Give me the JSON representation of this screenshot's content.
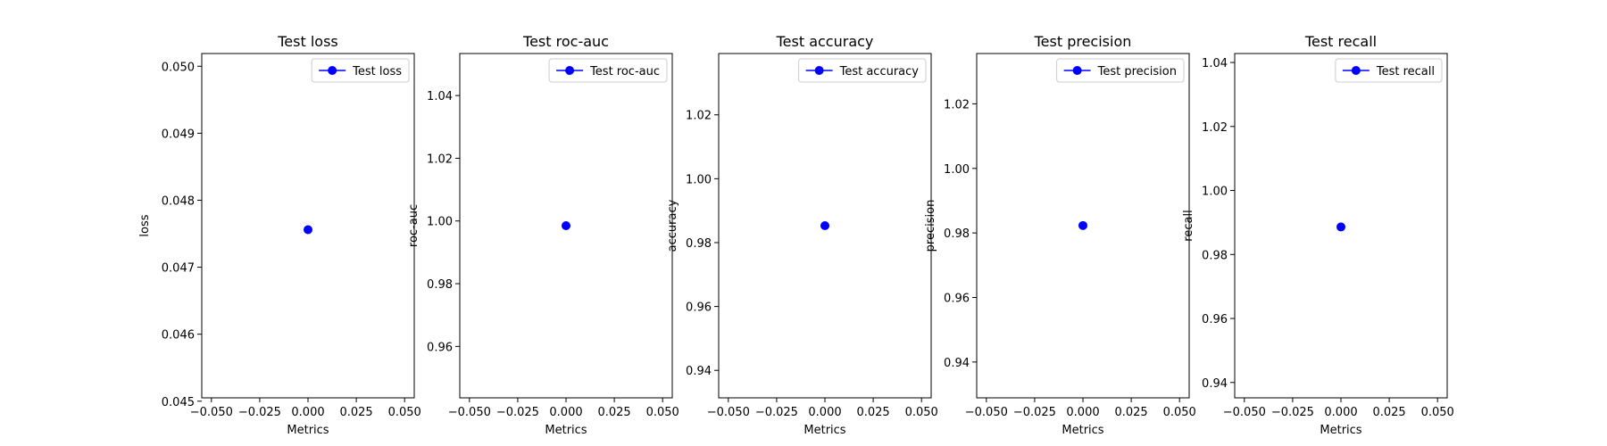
{
  "chart_data": [
    {
      "type": "scatter",
      "title": "Test loss",
      "xlabel": "Metrics",
      "ylabel": "loss",
      "xlim": [
        -0.055,
        0.055
      ],
      "ylim": [
        0.04505,
        0.05019
      ],
      "xticks": [
        "−0.050",
        "−0.025",
        "0.000",
        "0.025",
        "0.050"
      ],
      "yticks": [
        "0.045",
        "0.046",
        "0.047",
        "0.048",
        "0.049",
        "0.050"
      ],
      "legend": {
        "placement": "top-right",
        "label": "Test loss"
      },
      "series": [
        {
          "name": "Test loss",
          "x": [
            0
          ],
          "y": [
            0.04756
          ]
        }
      ],
      "color": "#0000ff"
    },
    {
      "type": "scatter",
      "title": "Test roc-auc",
      "xlabel": "Metrics",
      "ylabel": "roc-auc",
      "xlim": [
        -0.055,
        0.055
      ],
      "ylim": [
        0.9436,
        1.0534
      ],
      "xticks": [
        "−0.050",
        "−0.025",
        "0.000",
        "0.025",
        "0.050"
      ],
      "yticks": [
        "0.96",
        "0.98",
        "1.00",
        "1.02",
        "1.04"
      ],
      "legend": {
        "placement": "top-right",
        "label": "Test roc-auc"
      },
      "series": [
        {
          "name": "Test roc-auc",
          "x": [
            0
          ],
          "y": [
            0.9985
          ]
        }
      ],
      "color": "#0000ff"
    },
    {
      "type": "scatter",
      "title": "Test accuracy",
      "xlabel": "Metrics",
      "ylabel": "accuracy",
      "xlim": [
        -0.055,
        0.055
      ],
      "ylim": [
        0.9314,
        1.0392
      ],
      "xticks": [
        "−0.050",
        "−0.025",
        "0.000",
        "0.025",
        "0.050"
      ],
      "yticks": [
        "0.94",
        "0.96",
        "0.98",
        "1.00",
        "1.02"
      ],
      "legend": {
        "placement": "top-right",
        "label": "Test accuracy"
      },
      "series": [
        {
          "name": "Test accuracy",
          "x": [
            0
          ],
          "y": [
            0.9853
          ]
        }
      ],
      "color": "#0000ff"
    },
    {
      "type": "scatter",
      "title": "Test precision",
      "xlabel": "Metrics",
      "ylabel": "precision",
      "xlim": [
        -0.055,
        0.055
      ],
      "ylim": [
        0.9289,
        1.0356
      ],
      "xticks": [
        "−0.050",
        "−0.025",
        "0.000",
        "0.025",
        "0.050"
      ],
      "yticks": [
        "0.94",
        "0.96",
        "0.98",
        "1.00",
        "1.02"
      ],
      "legend": {
        "placement": "top-right",
        "label": "Test precision"
      },
      "series": [
        {
          "name": "Test precision",
          "x": [
            0
          ],
          "y": [
            0.9823
          ]
        }
      ],
      "color": "#0000ff"
    },
    {
      "type": "scatter",
      "title": "Test recall",
      "xlabel": "Metrics",
      "ylabel": "recall",
      "xlim": [
        -0.055,
        0.055
      ],
      "ylim": [
        0.9352,
        1.0428
      ],
      "xticks": [
        "−0.050",
        "−0.025",
        "0.000",
        "0.025",
        "0.050"
      ],
      "yticks": [
        "0.94",
        "0.96",
        "0.98",
        "1.00",
        "1.02",
        "1.04"
      ],
      "legend": {
        "placement": "top-right",
        "label": "Test recall"
      },
      "series": [
        {
          "name": "Test recall",
          "x": [
            0
          ],
          "y": [
            0.9886
          ]
        }
      ],
      "color": "#0000ff"
    }
  ]
}
